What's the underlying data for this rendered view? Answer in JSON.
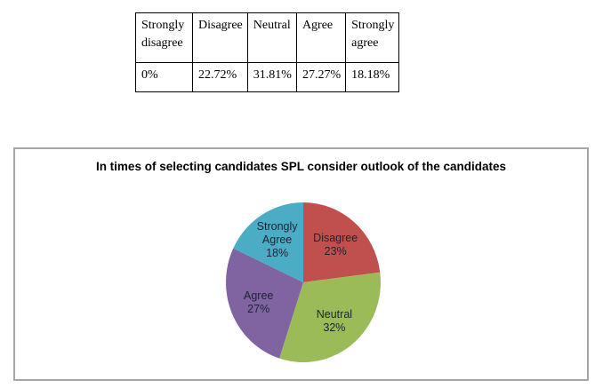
{
  "chart_data": [
    {
      "type": "table",
      "columns": [
        "Strongly disagree",
        "Disagree",
        "Neutral",
        "Agree",
        "Strongly agree"
      ],
      "rows": [
        [
          "0%",
          "22.72%",
          "31.81%",
          "27.27%",
          "18.18%"
        ]
      ]
    },
    {
      "type": "pie",
      "title": "In times of selecting candidates SPL consider outlook of the candidates",
      "labels": [
        "Disagree",
        "Neutral",
        "Agree",
        "Strongly Agree"
      ],
      "values": [
        23,
        32,
        27,
        18
      ],
      "value_labels": [
        "23%",
        "32%",
        "27%",
        "18%"
      ],
      "colors": [
        "#C0504D",
        "#9BBB59",
        "#8064A2",
        "#4BACC6"
      ],
      "start_angle_deg": 0,
      "direction": "clockwise",
      "label_position": "inside",
      "label_color": "#1c2430",
      "panel_border_color": "#a6a6a6",
      "legend": "none"
    }
  ]
}
